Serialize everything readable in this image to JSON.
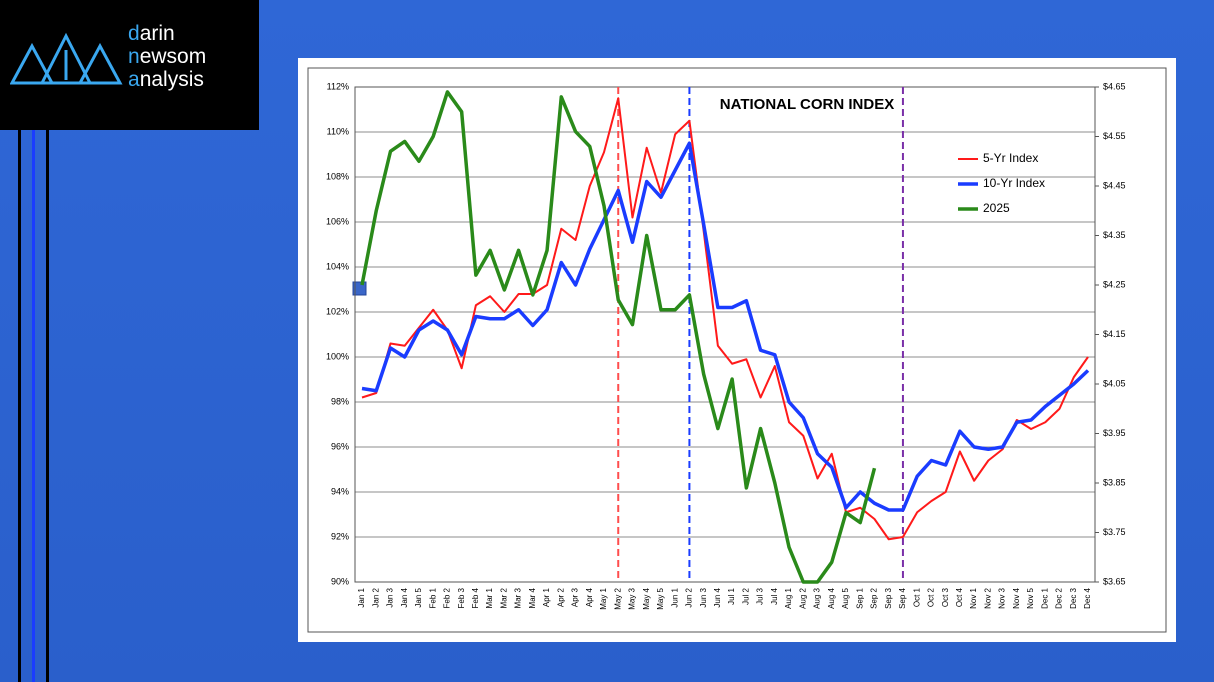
{
  "logo": {
    "lines": [
      "darin",
      "newsom",
      "analysis"
    ]
  },
  "chart_data": {
    "type": "line",
    "title": "NATIONAL CORN INDEX",
    "categories": [
      "Jan 1",
      "Jan 2",
      "Jan 3",
      "Jan 4",
      "Jan 5",
      "Feb 1",
      "Feb 2",
      "Feb 3",
      "Feb 4",
      "Mar 1",
      "Mar 2",
      "Mar 3",
      "Mar 4",
      "Apr 1",
      "Apr 2",
      "Apr 3",
      "Apr 4",
      "May 1",
      "May 2",
      "May 3",
      "May 4",
      "May 5",
      "Jun 1",
      "Jun 2",
      "Jun 3",
      "Jun 4",
      "Jul 1",
      "Jul 2",
      "Jul 3",
      "Jul 4",
      "Aug 1",
      "Aug 2",
      "Aug 3",
      "Aug 4",
      "Aug 5",
      "Sep 1",
      "Sep 2",
      "Sep 3",
      "Sep 4",
      "Oct 1",
      "Oct 2",
      "Oct 3",
      "Oct 4",
      "Nov 1",
      "Nov 2",
      "Nov 3",
      "Nov 4",
      "Nov 5",
      "Dec 1",
      "Dec 2",
      "Dec 3",
      "Dec 4"
    ],
    "series": [
      {
        "name": "5-Yr Index",
        "color": "#ff1a1a",
        "width": 2,
        "values": [
          98.2,
          98.4,
          100.6,
          100.5,
          101.3,
          102.1,
          101.2,
          99.5,
          102.3,
          102.7,
          102.0,
          102.8,
          102.8,
          103.2,
          105.7,
          105.2,
          107.6,
          109.1,
          111.5,
          106.2,
          109.3,
          107.3,
          109.9,
          110.5,
          105.6,
          100.5,
          99.7,
          99.9,
          98.2,
          99.6,
          97.1,
          96.5,
          94.6,
          95.7,
          93.1,
          93.3,
          92.8,
          91.9,
          92.0,
          93.1,
          93.6,
          94.0,
          95.8,
          94.5,
          95.4,
          95.9,
          97.2,
          96.8,
          97.1,
          97.7,
          99.1,
          100.0
        ]
      },
      {
        "name": "10-Yr Index",
        "color": "#1a3cff",
        "width": 3.5,
        "values": [
          98.6,
          98.5,
          100.4,
          100.0,
          101.2,
          101.6,
          101.2,
          100.1,
          101.8,
          101.7,
          101.7,
          102.1,
          101.4,
          102.1,
          104.2,
          103.2,
          104.8,
          106.1,
          107.4,
          105.1,
          107.8,
          107.1,
          108.3,
          109.5,
          105.9,
          102.2,
          102.2,
          102.5,
          100.3,
          100.1,
          98.0,
          97.3,
          95.7,
          95.1,
          93.3,
          94.0,
          93.5,
          93.2,
          93.2,
          94.7,
          95.4,
          95.2,
          96.7,
          96.0,
          95.9,
          96.0,
          97.1,
          97.2,
          97.8,
          98.3,
          98.8,
          99.4
        ]
      },
      {
        "name": "2025",
        "color": "#2a8a1a",
        "width": 3.5,
        "axis": "y2",
        "values": [
          4.25,
          4.4,
          4.52,
          4.54,
          4.5,
          4.55,
          4.64,
          4.6,
          4.27,
          4.32,
          4.24,
          4.32,
          4.23,
          4.32,
          4.63,
          4.56,
          4.53,
          4.41,
          4.22,
          4.17,
          4.35,
          4.2,
          4.2,
          4.23,
          4.07,
          3.96,
          4.06,
          3.84,
          3.96,
          3.85,
          3.72,
          3.65,
          3.65,
          3.69,
          3.79,
          3.77,
          3.88,
          null,
          null,
          null,
          null,
          null,
          null,
          null,
          null,
          null,
          null,
          null,
          null,
          null,
          null,
          null
        ]
      }
    ],
    "ylim": [
      90,
      112
    ],
    "yticks": [
      {
        "value": 90,
        "label": "90%"
      },
      {
        "value": 92,
        "label": "92%"
      },
      {
        "value": 94,
        "label": "94%"
      },
      {
        "value": 96,
        "label": "96%"
      },
      {
        "value": 98,
        "label": "98%"
      },
      {
        "value": 100,
        "label": "100%"
      },
      {
        "value": 102,
        "label": "102%"
      },
      {
        "value": 104,
        "label": "104%"
      },
      {
        "value": 106,
        "label": "106%"
      },
      {
        "value": 108,
        "label": "108%"
      },
      {
        "value": 110,
        "label": "110%"
      },
      {
        "value": 112,
        "label": "112%"
      }
    ],
    "y2lim": [
      3.65,
      4.65
    ],
    "y2ticks": [
      {
        "value": 3.65,
        "label": "$3.65"
      },
      {
        "value": 3.75,
        "label": "$3.75"
      },
      {
        "value": 3.85,
        "label": "$3.85"
      },
      {
        "value": 3.95,
        "label": "$3.95"
      },
      {
        "value": 4.05,
        "label": "$4.05"
      },
      {
        "value": 4.15,
        "label": "$4.15"
      },
      {
        "value": 4.25,
        "label": "$4.25"
      },
      {
        "value": 4.35,
        "label": "$4.35"
      },
      {
        "value": 4.45,
        "label": "$4.45"
      },
      {
        "value": 4.55,
        "label": "$4.55"
      },
      {
        "value": 4.65,
        "label": "$4.65"
      }
    ],
    "reference_lines": [
      {
        "category": "May 2",
        "color": "#ff4d4d"
      },
      {
        "category": "Jun 2",
        "color": "#1a3cff"
      },
      {
        "category": "Sep 4",
        "color": "#7a2fa8"
      }
    ],
    "grid": true,
    "legend": "upper right"
  }
}
